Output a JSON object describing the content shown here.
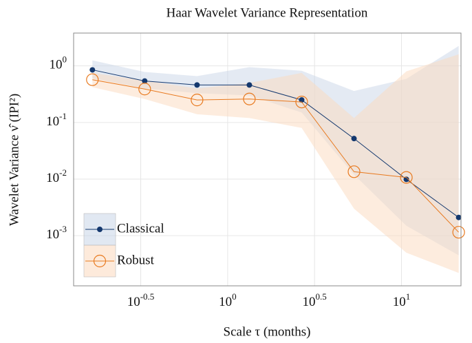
{
  "chart_data": {
    "type": "line",
    "title": "Haar Wavelet Variance Representation",
    "xlabel": "Scale τ (months)",
    "ylabel": "Wavelet Variance ν̂ (IPI²)",
    "x": [
      0.1667,
      0.3333,
      0.6667,
      1.3333,
      2.6667,
      5.3333,
      10.6667,
      21.3333
    ],
    "xscale": "log",
    "yscale": "log",
    "xlim": [
      0.13,
      22
    ],
    "ylim": [
      0.00013,
      3.8
    ],
    "xticks": [
      {
        "value": 0.3162,
        "label": "10^-0.5"
      },
      {
        "value": 1,
        "label": "10^0"
      },
      {
        "value": 3.1623,
        "label": "10^0.5"
      },
      {
        "value": 10,
        "label": "10^1"
      }
    ],
    "yticks": [
      {
        "value": 1,
        "label": "10^0"
      },
      {
        "value": 0.1,
        "label": "10^-1"
      },
      {
        "value": 0.01,
        "label": "10^-2"
      },
      {
        "value": 0.001,
        "label": "10^-3"
      }
    ],
    "grid": true,
    "legend": "lower left",
    "series": [
      {
        "name": "Classical",
        "color": "#14386e",
        "band_color": "#c9d6e8",
        "marker": "dot",
        "values": [
          0.85,
          0.54,
          0.46,
          0.46,
          0.25,
          0.052,
          0.0099,
          0.0021
        ],
        "upper": [
          1.25,
          0.78,
          0.66,
          0.95,
          0.82,
          0.36,
          0.59,
          2.25
        ],
        "lower": [
          0.6,
          0.4,
          0.33,
          0.3,
          0.15,
          0.012,
          0.0015,
          0.00045
        ]
      },
      {
        "name": "Robust",
        "color": "#e8791e",
        "band_color": "#fbd9bd",
        "marker": "circle",
        "values": [
          0.57,
          0.39,
          0.25,
          0.26,
          0.23,
          0.0135,
          0.0107,
          0.00115
        ],
        "upper": [
          0.75,
          0.55,
          0.4,
          0.5,
          0.75,
          0.12,
          0.8,
          1.6
        ],
        "lower": [
          0.42,
          0.26,
          0.14,
          0.12,
          0.08,
          0.003,
          0.0005,
          0.00022
        ]
      }
    ]
  }
}
